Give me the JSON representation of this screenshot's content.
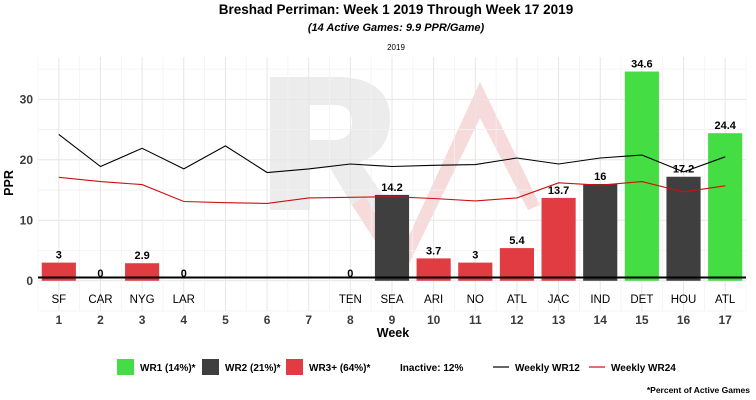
{
  "chart_data": {
    "type": "bar",
    "title": "Breshad Perriman: Week 1 2019 Through Week 17 2019",
    "subtitle": "(14 Active Games: 9.9 PPR/Game)",
    "season_label": "2019",
    "xlabel": "Week",
    "ylabel": "PPR",
    "ylim": [
      -5,
      37
    ],
    "yticks": [
      0,
      10,
      20,
      30
    ],
    "weeks": [
      1,
      2,
      3,
      4,
      5,
      6,
      7,
      8,
      9,
      10,
      11,
      12,
      13,
      14,
      15,
      16,
      17
    ],
    "opponents": [
      "SF",
      "CAR",
      "NYG",
      "LAR",
      "",
      "",
      "",
      "TEN",
      "SEA",
      "ARI",
      "NO",
      "ATL",
      "JAC",
      "IND",
      "DET",
      "HOU",
      "ATL"
    ],
    "series": [
      {
        "name": "PPR",
        "values": [
          3,
          0,
          2.9,
          0,
          null,
          null,
          null,
          0,
          14.2,
          3.7,
          3,
          5.4,
          13.7,
          16,
          34.6,
          17.2,
          24.4
        ],
        "labels": [
          "3",
          "0",
          "2.9",
          "0",
          "",
          "",
          "",
          "0",
          "14.2",
          "3.7",
          "3",
          "5.4",
          "13.7",
          "16",
          "34.6",
          "17.2",
          "24.4"
        ],
        "roles": [
          "WR3",
          "WR3",
          "WR3",
          "WR3",
          "",
          "",
          "",
          "WR3",
          "WR2",
          "WR3",
          "WR3",
          "WR3",
          "WR3",
          "WR2",
          "WR1",
          "WR2",
          "WR1"
        ]
      },
      {
        "name": "Weekly WR12",
        "values": [
          24.2,
          18.9,
          21.9,
          18.5,
          22.3,
          17.9,
          18.5,
          19.3,
          18.9,
          19.1,
          19.2,
          20.3,
          19.3,
          20.3,
          20.8,
          18.0,
          20.5
        ]
      },
      {
        "name": "Weekly WR24",
        "values": [
          17.1,
          16.4,
          15.9,
          13.1,
          12.9,
          12.8,
          13.7,
          13.8,
          13.9,
          13.6,
          13.2,
          13.7,
          16.2,
          15.8,
          16.4,
          14.7,
          15.7
        ]
      }
    ],
    "colors": {
      "WR1": "#44dd44",
      "WR2": "#3f3f3f",
      "WR3": "#e03c41",
      "wr12_line": "#000000",
      "wr24_line": "#cc1111",
      "grid": "#e6e6e6"
    },
    "legend": {
      "wr1": "WR1 (14%)*",
      "wr2": "WR2 (21%)*",
      "wr3": "WR3+ (64%)*",
      "inactive": "Inactive: 12%",
      "wr12": "Weekly WR12",
      "wr24": "Weekly WR24"
    },
    "footnote": "*Percent of Active Games",
    "watermark": "RV"
  }
}
